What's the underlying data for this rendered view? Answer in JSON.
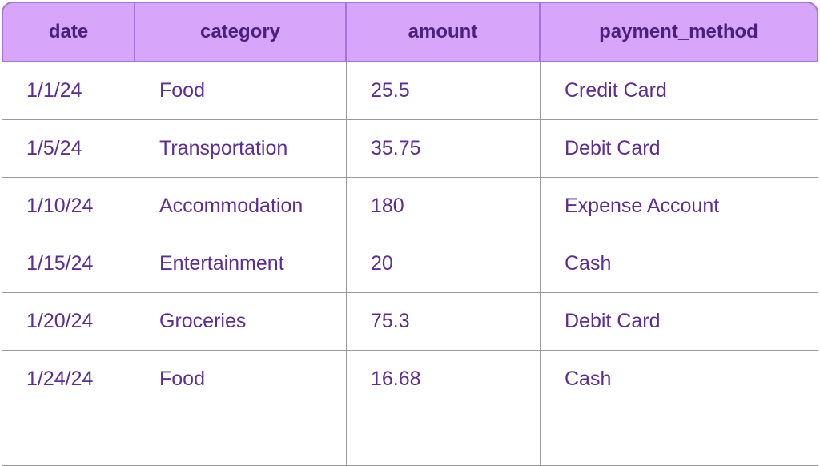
{
  "table": {
    "columns": [
      "date",
      "category",
      "amount",
      "payment_method"
    ],
    "rows": [
      [
        "1/1/24",
        "Food",
        25.5,
        "Credit Card"
      ],
      [
        "1/5/24",
        "Transportation",
        35.75,
        "Debit Card"
      ],
      [
        "1/10/24",
        "Accommodation",
        180,
        "Expense Account"
      ],
      [
        "1/15/24",
        "Entertainment",
        20,
        "Cash"
      ],
      [
        "1/20/24",
        "Groceries",
        75.3,
        "Debit Card"
      ],
      [
        "1/24/24",
        "Food",
        16.68,
        "Cash"
      ]
    ]
  }
}
